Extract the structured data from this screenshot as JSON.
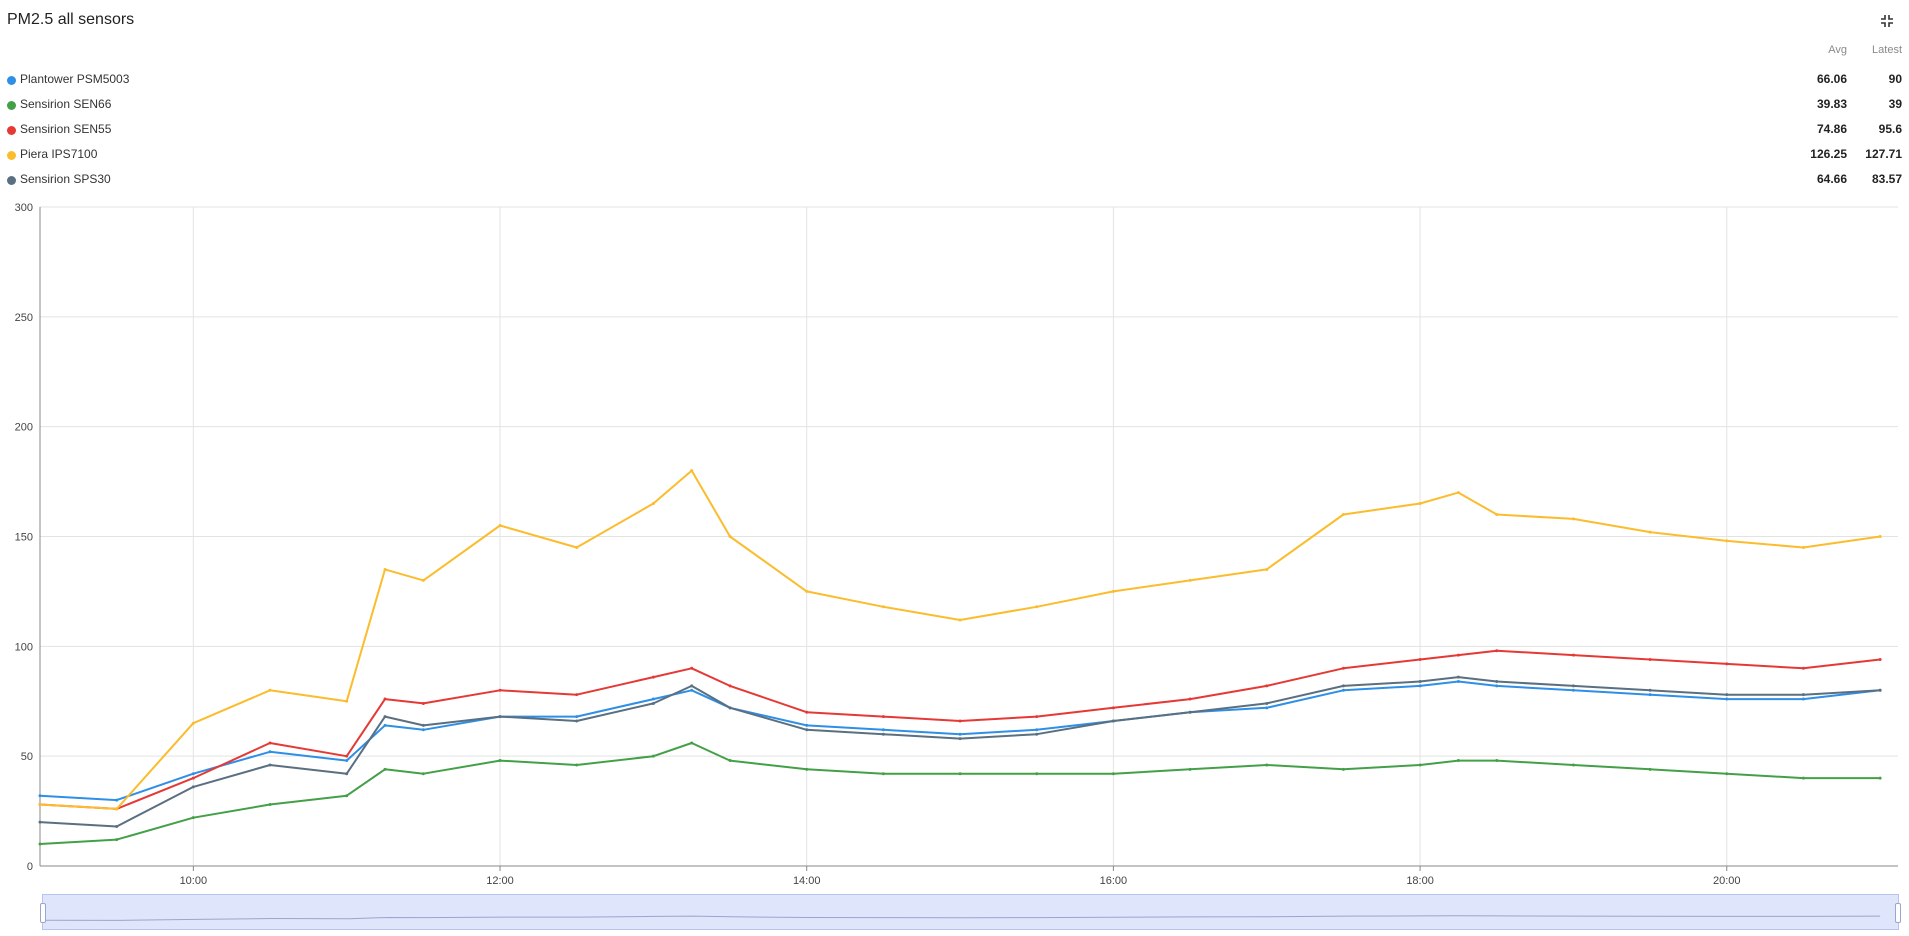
{
  "header": {
    "title": "PM2.5 all sensors",
    "fullscreen_icon": "fullscreen-exit-icon"
  },
  "legend": {
    "avg_label": "Avg",
    "latest_label": "Latest",
    "items": [
      {
        "name": "Plantower PSM5003",
        "avg": "66.06",
        "latest": "90",
        "color": "#2f8fe6"
      },
      {
        "name": "Sensirion SEN66",
        "avg": "39.83",
        "latest": "39",
        "color": "#43a047"
      },
      {
        "name": "Sensirion SEN55",
        "avg": "74.86",
        "latest": "95.6",
        "color": "#e53935"
      },
      {
        "name": "Piera IPS7100",
        "avg": "126.25",
        "latest": "127.71",
        "color": "#fbbc2d"
      },
      {
        "name": "Sensirion SPS30",
        "avg": "64.66",
        "latest": "83.57",
        "color": "#5a6f80"
      }
    ]
  },
  "chart_data": {
    "type": "line",
    "x_range": [
      "09:00",
      "21:07"
    ],
    "ylim": [
      0,
      300
    ],
    "y_ticks": [
      "0",
      "50",
      "100",
      "150",
      "200",
      "250",
      "300"
    ],
    "x_ticks": [
      "10:00",
      "12:00",
      "14:00",
      "16:00",
      "18:00",
      "20:00"
    ],
    "grid": true,
    "series": [
      {
        "name": "Plantower PSM5003",
        "color": "#2f8fe6",
        "x": [
          "09:00",
          "09:30",
          "10:00",
          "10:30",
          "11:00",
          "11:15",
          "11:30",
          "12:00",
          "12:30",
          "13:00",
          "13:15",
          "13:30",
          "14:00",
          "14:30",
          "15:00",
          "15:30",
          "16:00",
          "16:30",
          "17:00",
          "17:30",
          "18:00",
          "18:15",
          "18:30",
          "19:00",
          "19:30",
          "20:00",
          "20:30",
          "21:00"
        ],
        "y": [
          32,
          30,
          42,
          52,
          48,
          64,
          62,
          68,
          68,
          76,
          80,
          72,
          64,
          62,
          60,
          62,
          66,
          70,
          72,
          80,
          82,
          84,
          82,
          80,
          78,
          76,
          76,
          80
        ]
      },
      {
        "name": "Sensirion SEN66",
        "color": "#43a047",
        "x": [
          "09:00",
          "09:30",
          "10:00",
          "10:30",
          "11:00",
          "11:15",
          "11:30",
          "12:00",
          "12:30",
          "13:00",
          "13:15",
          "13:30",
          "14:00",
          "14:30",
          "15:00",
          "15:30",
          "16:00",
          "16:30",
          "17:00",
          "17:30",
          "18:00",
          "18:15",
          "18:30",
          "19:00",
          "19:30",
          "20:00",
          "20:30",
          "21:00"
        ],
        "y": [
          10,
          12,
          22,
          28,
          32,
          44,
          42,
          48,
          46,
          50,
          56,
          48,
          44,
          42,
          42,
          42,
          42,
          44,
          46,
          44,
          46,
          48,
          48,
          46,
          44,
          42,
          40,
          40
        ]
      },
      {
        "name": "Sensirion SEN55",
        "color": "#e53935",
        "x": [
          "09:00",
          "09:30",
          "10:00",
          "10:30",
          "11:00",
          "11:15",
          "11:30",
          "12:00",
          "12:30",
          "13:00",
          "13:15",
          "13:30",
          "14:00",
          "14:30",
          "15:00",
          "15:30",
          "16:00",
          "16:30",
          "17:00",
          "17:30",
          "18:00",
          "18:15",
          "18:30",
          "19:00",
          "19:30",
          "20:00",
          "20:30",
          "21:00"
        ],
        "y": [
          28,
          26,
          40,
          56,
          50,
          76,
          74,
          80,
          78,
          86,
          90,
          82,
          70,
          68,
          66,
          68,
          72,
          76,
          82,
          90,
          94,
          96,
          98,
          96,
          94,
          92,
          90,
          94
        ]
      },
      {
        "name": "Piera IPS7100",
        "color": "#fbbc2d",
        "x": [
          "09:00",
          "09:30",
          "10:00",
          "10:30",
          "11:00",
          "11:15",
          "11:30",
          "12:00",
          "12:30",
          "13:00",
          "13:15",
          "13:30",
          "14:00",
          "14:30",
          "15:00",
          "15:30",
          "16:00",
          "16:30",
          "17:00",
          "17:30",
          "18:00",
          "18:15",
          "18:30",
          "19:00",
          "19:30",
          "20:00",
          "20:30",
          "21:00"
        ],
        "y": [
          28,
          26,
          65,
          80,
          75,
          135,
          130,
          155,
          145,
          165,
          180,
          150,
          125,
          118,
          112,
          118,
          125,
          130,
          135,
          160,
          165,
          170,
          160,
          158,
          152,
          148,
          145,
          150
        ]
      },
      {
        "name": "Sensirion SPS30",
        "color": "#5a6f80",
        "x": [
          "09:00",
          "09:30",
          "10:00",
          "10:30",
          "11:00",
          "11:15",
          "11:30",
          "12:00",
          "12:30",
          "13:00",
          "13:15",
          "13:30",
          "14:00",
          "14:30",
          "15:00",
          "15:30",
          "16:00",
          "16:30",
          "17:00",
          "17:30",
          "18:00",
          "18:15",
          "18:30",
          "19:00",
          "19:30",
          "20:00",
          "20:30",
          "21:00"
        ],
        "y": [
          20,
          18,
          36,
          46,
          42,
          68,
          64,
          68,
          66,
          74,
          82,
          72,
          62,
          60,
          58,
          60,
          66,
          70,
          74,
          82,
          84,
          86,
          84,
          82,
          80,
          78,
          78,
          80
        ]
      }
    ]
  }
}
